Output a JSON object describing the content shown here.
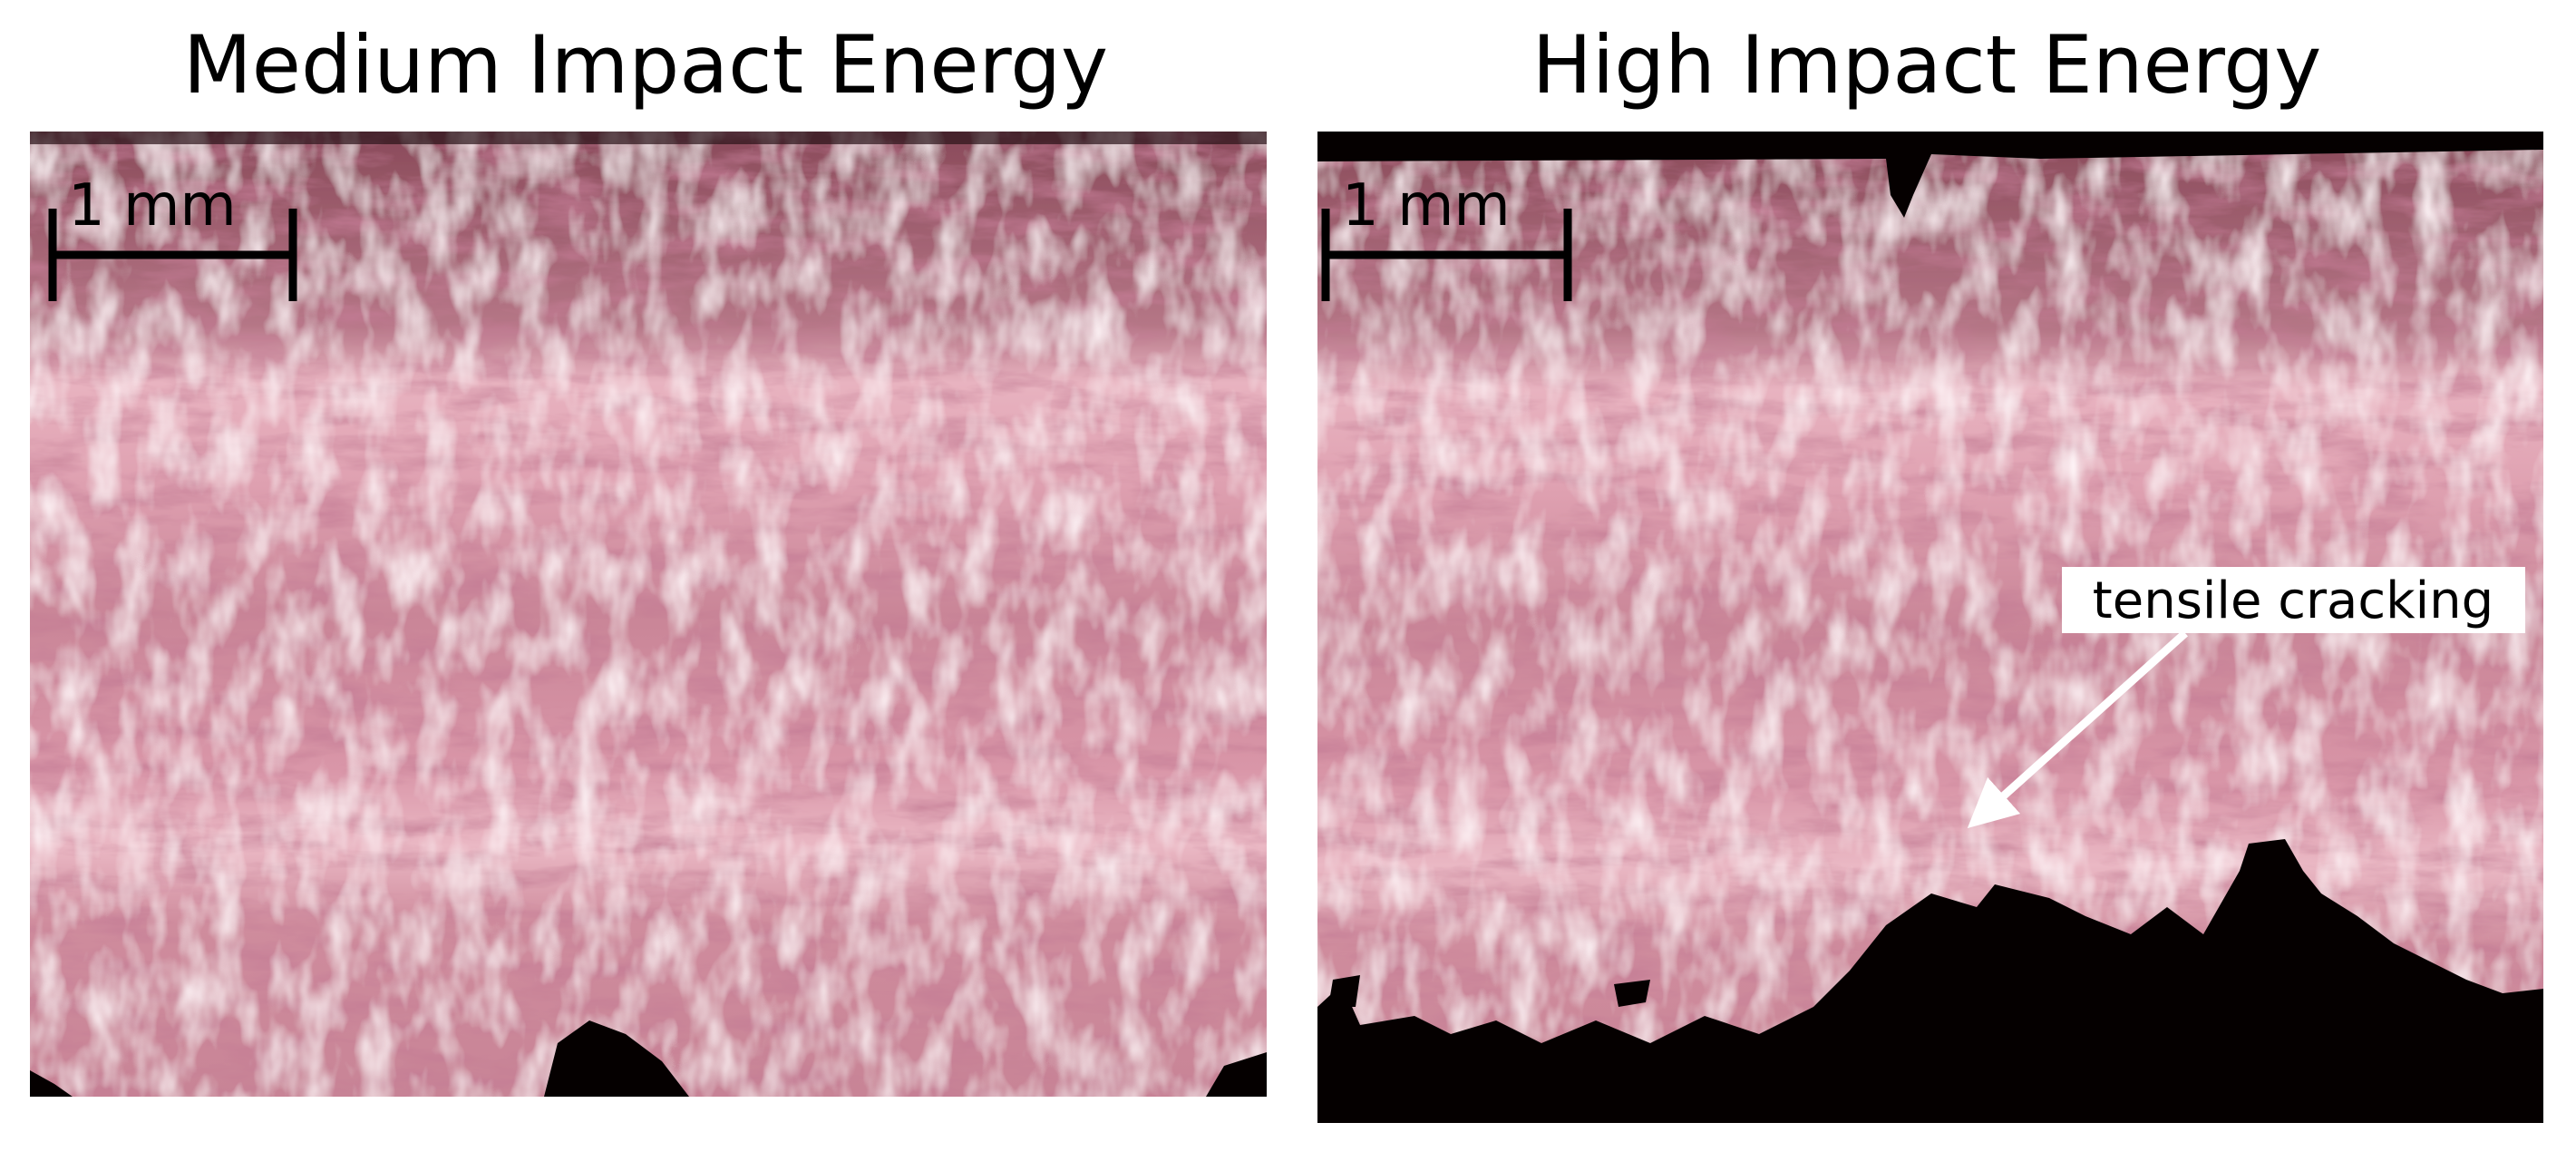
{
  "panels": [
    {
      "title": "Medium Impact Energy",
      "scale_label": "1 mm"
    },
    {
      "title": "High Impact Energy",
      "scale_label": "1 mm",
      "annotation": "tensile cracking"
    }
  ]
}
